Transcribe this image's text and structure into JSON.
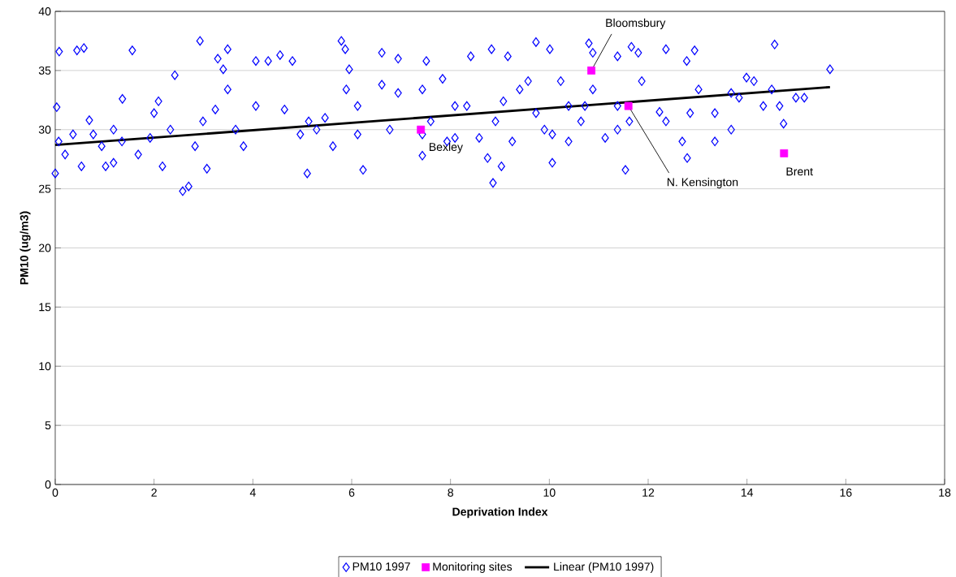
{
  "chart_data": {
    "type": "scatter",
    "xlabel": "Deprivation Index",
    "ylabel": "PM10 (ug/m3)",
    "xlim": [
      0,
      18
    ],
    "ylim": [
      0,
      40
    ],
    "xticks": [
      0,
      2,
      4,
      6,
      8,
      10,
      12,
      14,
      16,
      18
    ],
    "yticks": [
      0,
      5,
      10,
      15,
      20,
      25,
      30,
      35,
      40
    ],
    "grid": "y",
    "legend": "bottom",
    "series": [
      {
        "name": "PM10 1997",
        "marker": "diamond",
        "color": "#0000ff",
        "x": [
          0.03,
          0.08,
          0.0,
          0.44,
          0.58,
          1.36,
          1.56,
          0.07,
          0.36,
          0.69,
          0.2,
          0.53,
          1.02,
          1.18,
          0.94,
          1.35,
          1.68,
          1.92,
          2.0,
          2.09,
          2.17,
          2.42,
          2.58,
          2.7,
          2.93,
          3.07,
          3.24,
          3.29,
          3.4,
          3.49,
          3.49,
          2.83,
          2.33,
          3.65,
          3.81,
          4.06,
          4.06,
          4.31,
          4.55,
          4.8,
          4.64,
          5.1,
          4.96,
          5.29,
          5.46,
          5.62,
          5.79,
          5.87,
          5.95,
          5.89,
          6.23,
          6.12,
          6.61,
          6.61,
          6.94,
          6.94,
          6.77,
          7.43,
          7.51,
          7.43,
          7.84,
          7.6,
          7.93,
          8.09,
          8.41,
          8.33,
          8.75,
          8.83,
          8.86,
          9.03,
          9.16,
          8.91,
          9.25,
          9.57,
          9.73,
          9.73,
          10.06,
          10.01,
          9.9,
          10.23,
          10.39,
          10.64,
          10.8,
          10.88,
          11.13,
          11.54,
          11.62,
          11.66,
          11.38,
          11.8,
          11.87,
          12.36,
          12.23,
          12.69,
          12.79,
          12.78,
          12.94,
          13.02,
          13.35,
          13.68,
          13.84,
          13.99,
          14.14,
          14.56,
          14.66,
          14.74,
          14.33,
          14.99,
          15.68,
          10.39,
          11.38,
          13.35,
          13.68,
          14.5,
          9.4,
          8.09,
          6.12,
          7.43,
          5.13,
          2.99,
          1.18,
          0.77,
          11.38,
          12.36,
          15.16,
          10.72,
          10.88,
          12.85,
          9.07,
          8.58,
          10.06
        ],
        "values": [
          31.9,
          36.6,
          26.3,
          36.7,
          36.9,
          32.6,
          36.7,
          29.0,
          29.6,
          30.8,
          27.9,
          26.9,
          26.9,
          27.2,
          28.6,
          29.0,
          27.9,
          29.3,
          31.4,
          32.4,
          26.9,
          34.6,
          24.8,
          25.2,
          37.5,
          26.7,
          31.7,
          36.0,
          35.1,
          36.8,
          33.4,
          28.6,
          30.0,
          30.0,
          28.6,
          35.8,
          32.0,
          35.8,
          36.3,
          35.8,
          31.7,
          26.3,
          29.6,
          30.0,
          31.0,
          28.6,
          37.5,
          36.8,
          35.1,
          33.4,
          26.6,
          29.6,
          36.5,
          33.8,
          36.0,
          33.1,
          30.0,
          27.8,
          35.8,
          33.4,
          34.3,
          30.7,
          29.0,
          29.3,
          36.2,
          32.0,
          27.6,
          36.8,
          25.5,
          26.9,
          36.2,
          30.7,
          29.0,
          34.1,
          37.4,
          31.4,
          27.2,
          36.8,
          30.0,
          34.1,
          29.0,
          30.7,
          37.3,
          36.5,
          29.3,
          26.6,
          30.7,
          37.0,
          36.2,
          36.5,
          34.1,
          36.8,
          31.5,
          29.0,
          27.6,
          35.8,
          36.7,
          33.4,
          31.4,
          30.0,
          32.7,
          34.4,
          34.1,
          37.2,
          32.0,
          30.5,
          32.0,
          32.7,
          35.1,
          32.0,
          32.0,
          29.0,
          33.1,
          33.4,
          33.4,
          32.0,
          32.0,
          29.6,
          30.7,
          30.7,
          30.0,
          29.6,
          30.0,
          30.7,
          32.7,
          32.0,
          33.4,
          31.4,
          32.4,
          29.3,
          29.6
        ]
      },
      {
        "name": "Monitoring sites",
        "marker": "square",
        "color": "#ff00ff",
        "x": [
          7.4,
          10.85,
          11.6,
          14.75
        ],
        "values": [
          30,
          35,
          32,
          28
        ]
      },
      {
        "name": "Linear (PM10 1997)",
        "type": "line",
        "marker": "none",
        "color": "#000000",
        "x": [
          0,
          15.68
        ],
        "values": [
          28.7,
          33.6
        ]
      }
    ],
    "annotations": [
      {
        "text": "Bexley",
        "x": 7.4,
        "y": 30
      },
      {
        "text": "Bloomsbury",
        "x": 10.85,
        "y": 35
      },
      {
        "text": "N. Kensington",
        "x": 11.6,
        "y": 32
      },
      {
        "text": "Brent",
        "x": 14.75,
        "y": 28
      }
    ]
  }
}
